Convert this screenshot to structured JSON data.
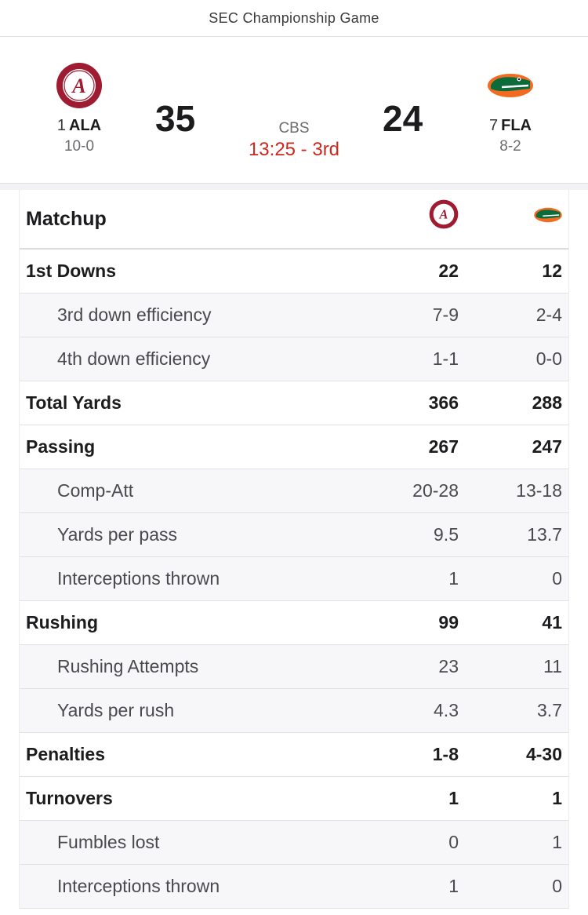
{
  "header": {
    "title": "SEC Championship Game"
  },
  "game": {
    "home": {
      "rank": "1",
      "abbr": "ALA",
      "record": "10-0",
      "score": "35",
      "logo": "alabama-logo",
      "color": "#9e1b32"
    },
    "away": {
      "rank": "7",
      "abbr": "FLA",
      "record": "8-2",
      "score": "24",
      "logo": "florida-gator-logo",
      "color": "#0021a5"
    },
    "network": "CBS",
    "clock": "13:25 - 3rd",
    "clock_color": "#d0271d"
  },
  "matchup": {
    "title": "Matchup",
    "rows": [
      {
        "label": "1st Downs",
        "v1": "22",
        "v2": "12",
        "type": "main"
      },
      {
        "label": "3rd down efficiency",
        "v1": "7-9",
        "v2": "2-4",
        "type": "sub"
      },
      {
        "label": "4th down efficiency",
        "v1": "1-1",
        "v2": "0-0",
        "type": "sub"
      },
      {
        "label": "Total Yards",
        "v1": "366",
        "v2": "288",
        "type": "main"
      },
      {
        "label": "Passing",
        "v1": "267",
        "v2": "247",
        "type": "main"
      },
      {
        "label": "Comp-Att",
        "v1": "20-28",
        "v2": "13-18",
        "type": "sub"
      },
      {
        "label": "Yards per pass",
        "v1": "9.5",
        "v2": "13.7",
        "type": "sub"
      },
      {
        "label": "Interceptions thrown",
        "v1": "1",
        "v2": "0",
        "type": "sub"
      },
      {
        "label": "Rushing",
        "v1": "99",
        "v2": "41",
        "type": "main"
      },
      {
        "label": "Rushing Attempts",
        "v1": "23",
        "v2": "11",
        "type": "sub"
      },
      {
        "label": "Yards per rush",
        "v1": "4.3",
        "v2": "3.7",
        "type": "sub"
      },
      {
        "label": "Penalties",
        "v1": "1-8",
        "v2": "4-30",
        "type": "main"
      },
      {
        "label": "Turnovers",
        "v1": "1",
        "v2": "1",
        "type": "main"
      },
      {
        "label": "Fumbles lost",
        "v1": "0",
        "v2": "1",
        "type": "sub"
      },
      {
        "label": "Interceptions thrown",
        "v1": "1",
        "v2": "0",
        "type": "sub"
      }
    ]
  }
}
